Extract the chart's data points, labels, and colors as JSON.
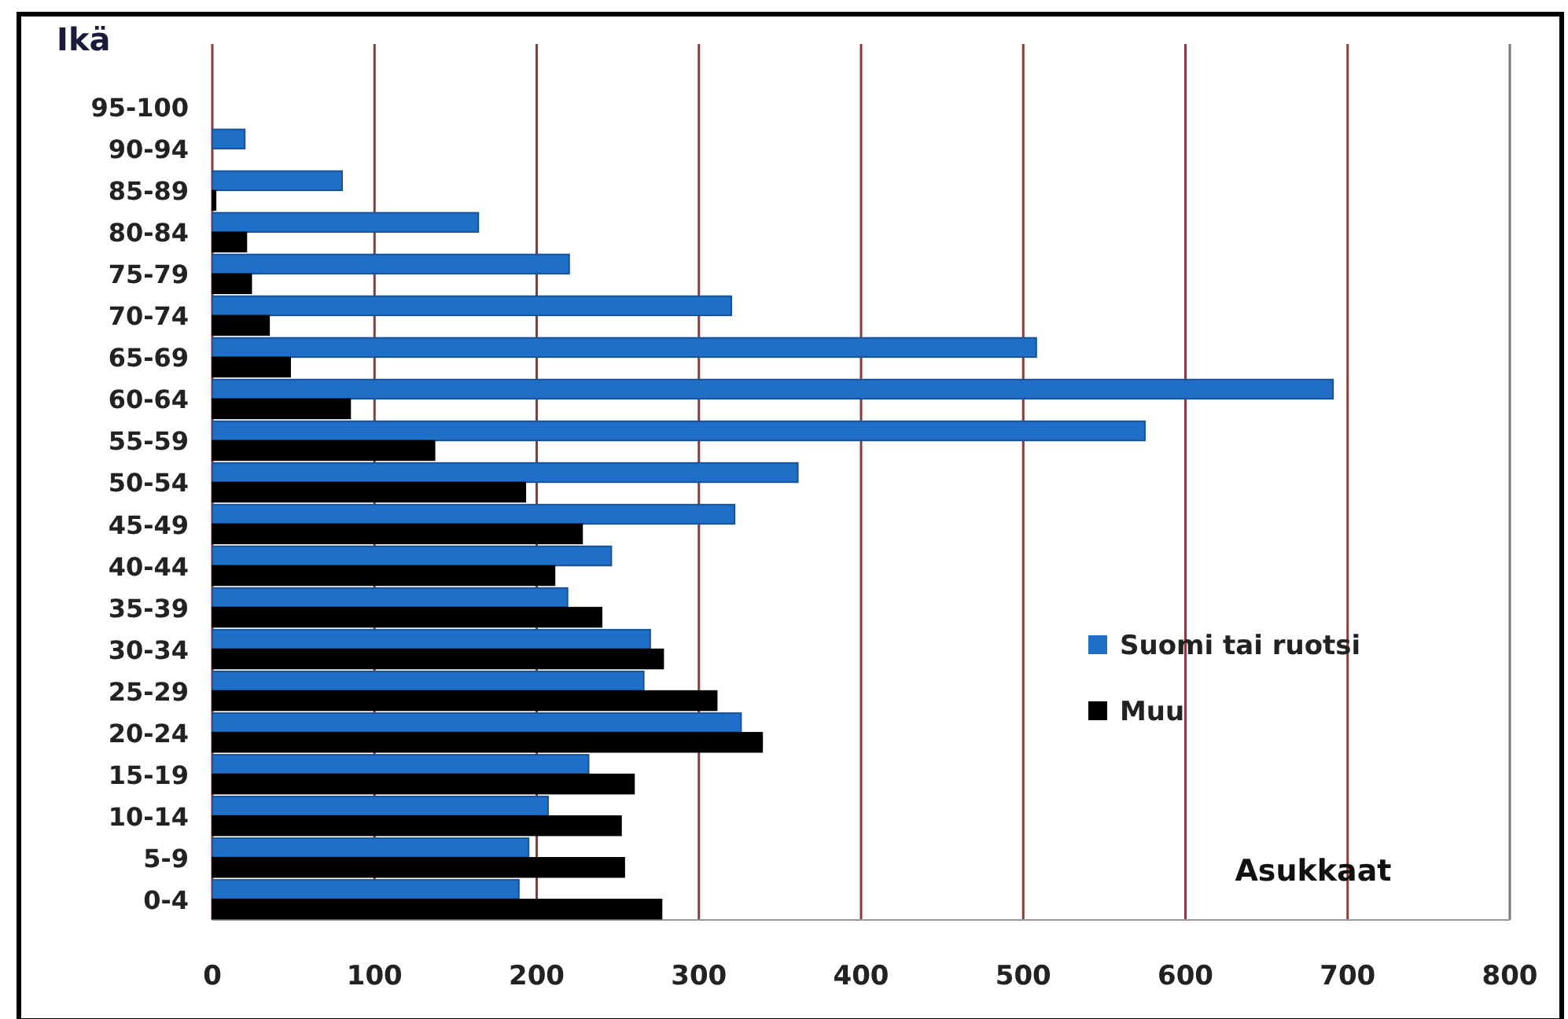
{
  "chart_data": {
    "type": "bar",
    "orientation": "horizontal",
    "xlabel": "Asukkaat",
    "ylabel": "Ikä",
    "categories": [
      "95-100",
      "90-94",
      "85-89",
      "80-84",
      "75-79",
      "70-74",
      "65-69",
      "60-64",
      "55-59",
      "50-54",
      "45-49",
      "40-44",
      "35-39",
      "30-34",
      "25-29",
      "20-24",
      "15-19",
      "10-14",
      "5-9",
      "0-4"
    ],
    "series": [
      {
        "name": "Suomi tai ruotsi",
        "color": "#1f6fc8",
        "values": [
          0,
          20,
          80,
          164,
          220,
          320,
          508,
          691,
          575,
          361,
          322,
          246,
          219,
          270,
          266,
          326,
          232,
          207,
          195,
          189
        ]
      },
      {
        "name": "Muu",
        "color": "#000000",
        "values": [
          0,
          0,
          2,
          21,
          24,
          35,
          48,
          85,
          137,
          193,
          228,
          211,
          240,
          278,
          311,
          339,
          260,
          252,
          254,
          277
        ]
      }
    ],
    "xlim": [
      0,
      800
    ],
    "xticks": [
      0,
      100,
      200,
      300,
      400,
      500,
      600,
      700,
      800
    ],
    "grid": "x",
    "legend": "right"
  }
}
